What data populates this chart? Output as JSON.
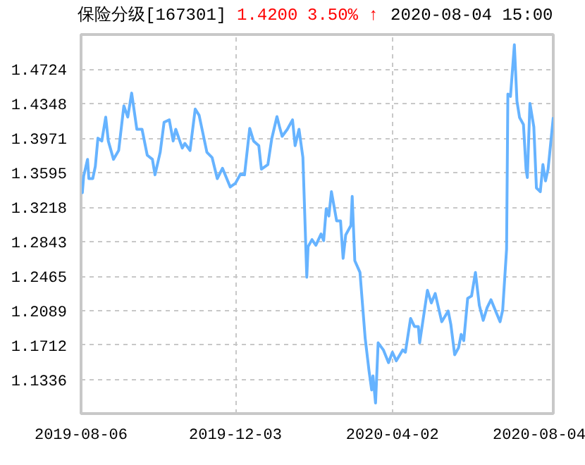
{
  "chart_data": {
    "type": "line",
    "title": "保险分级[167301]",
    "annotations": [
      "1.4200",
      "3.50% ↑",
      "2020-08-04 15:00"
    ],
    "x": [
      "2019-08-06",
      "2019-08-07",
      "2019-08-08",
      "2019-08-11",
      "2019-08-12",
      "2019-08-15",
      "2019-08-17",
      "2019-08-19",
      "2019-08-22",
      "2019-08-25",
      "2019-08-27",
      "2019-08-31",
      "2019-09-04",
      "2019-09-08",
      "2019-09-11",
      "2019-09-14",
      "2019-09-18",
      "2019-09-22",
      "2019-09-26",
      "2019-09-30",
      "2019-10-02",
      "2019-10-06",
      "2019-10-09",
      "2019-10-13",
      "2019-10-16",
      "2019-10-18",
      "2019-10-23",
      "2019-10-25",
      "2019-10-29",
      "2019-11-02",
      "2019-11-05",
      "2019-11-11",
      "2019-11-15",
      "2019-11-19",
      "2019-11-23",
      "2019-11-29",
      "2019-12-03",
      "2019-12-07",
      "2019-12-10",
      "2019-12-14",
      "2019-12-17",
      "2019-12-21",
      "2019-12-23",
      "2019-12-28",
      "2019-12-31",
      "2020-01-04",
      "2020-01-06",
      "2020-01-08",
      "2020-01-12",
      "2020-01-16",
      "2020-01-18",
      "2020-01-21",
      "2020-01-24",
      "2020-01-27",
      "2020-01-28",
      "2020-01-31",
      "2020-02-03",
      "2020-02-07",
      "2020-02-09",
      "2020-02-11",
      "2020-02-13",
      "2020-02-15",
      "2020-02-19",
      "2020-02-22",
      "2020-02-24",
      "2020-02-26",
      "2020-03-01",
      "2020-03-02",
      "2020-03-04",
      "2020-03-08",
      "2020-03-12",
      "2020-03-15",
      "2020-03-17",
      "2020-03-18",
      "2020-03-20",
      "2020-03-22",
      "2020-03-26",
      "2020-03-30",
      "2020-04-02",
      "2020-04-05",
      "2020-04-10",
      "2020-04-12",
      "2020-04-16",
      "2020-04-19",
      "2020-04-22",
      "2020-04-23",
      "2020-04-29",
      "2020-05-02",
      "2020-05-05",
      "2020-05-10",
      "2020-05-15",
      "2020-05-17",
      "2020-05-20",
      "2020-05-23",
      "2020-05-25",
      "2020-05-27",
      "2020-05-30",
      "2020-06-02",
      "2020-06-05",
      "2020-06-08",
      "2020-06-11",
      "2020-06-14",
      "2020-06-17",
      "2020-06-21",
      "2020-06-24",
      "2020-06-26",
      "2020-06-29",
      "2020-06-30",
      "2020-07-02",
      "2020-07-05",
      "2020-07-07",
      "2020-07-09",
      "2020-07-12",
      "2020-07-14",
      "2020-07-15",
      "2020-07-17",
      "2020-07-20",
      "2020-07-22",
      "2020-07-25",
      "2020-07-27",
      "2020-07-29",
      "2020-07-31",
      "2020-08-04"
    ],
    "series": [
      {
        "color": "#66b3ff",
        "values": [
          1.3479,
          1.3376,
          1.3556,
          1.374,
          1.353,
          1.353,
          1.3663,
          1.3971,
          1.394,
          1.4201,
          1.394,
          1.374,
          1.3837,
          1.4324,
          1.4201,
          1.4463,
          1.4068,
          1.4068,
          1.3786,
          1.374,
          1.3571,
          1.3817,
          1.4145,
          1.4171,
          1.394,
          1.4068,
          1.3863,
          1.3914,
          1.3837,
          1.4289,
          1.4221,
          1.3817,
          1.376,
          1.353,
          1.3643,
          1.3438,
          1.3479,
          1.3582,
          1.3571,
          1.4078,
          1.394,
          1.3889,
          1.3633,
          1.3683,
          1.3966,
          1.4206,
          1.4094,
          1.3991,
          1.4068,
          1.4171,
          1.3889,
          1.4068,
          1.376,
          1.2454,
          1.2787,
          1.2864,
          1.2803,
          1.2926,
          1.2853,
          1.3202,
          1.3121,
          1.3387,
          1.3069,
          1.3069,
          1.266,
          1.2915,
          1.3018,
          1.3336,
          1.2634,
          1.2506,
          1.1788,
          1.143,
          1.1224,
          1.1378,
          1.1081,
          1.1738,
          1.1661,
          1.1522,
          1.1635,
          1.1542,
          1.1661,
          1.1635,
          1.2004,
          1.1916,
          1.1916,
          1.1738,
          1.2311,
          1.2173,
          1.2276,
          1.1968,
          1.2085,
          1.1942,
          1.1608,
          1.1685,
          1.183,
          1.1762,
          1.2223,
          1.2249,
          1.2506,
          1.2146,
          1.1983,
          1.2122,
          1.2208,
          1.207,
          1.1968,
          1.2096,
          1.2761,
          1.4452,
          1.4427,
          1.499,
          1.4375,
          1.4197,
          1.412,
          1.3633,
          1.3541,
          1.4351,
          1.4094,
          1.3428,
          1.3387,
          1.3683,
          1.3505,
          1.3633,
          1.42
        ]
      }
    ],
    "xlim": [
      "2019-08-06",
      "2020-08-04"
    ],
    "xticks": [
      {
        "value": "2019-08-06",
        "label": "2019-08-06"
      },
      {
        "value": "2019-12-03",
        "label": "2019-12-03"
      },
      {
        "value": "2020-04-02",
        "label": "2020-04-02"
      },
      {
        "value": "2020-08-04",
        "label": "2020-08-04"
      }
    ],
    "ylim": [
      1.0966,
      1.5102
    ],
    "yticks": [
      1.1336,
      1.1712,
      1.2089,
      1.2465,
      1.2843,
      1.3218,
      1.3595,
      1.3971,
      1.4348,
      1.4724
    ],
    "grid": true,
    "marker": "none",
    "line_style": "solid"
  }
}
